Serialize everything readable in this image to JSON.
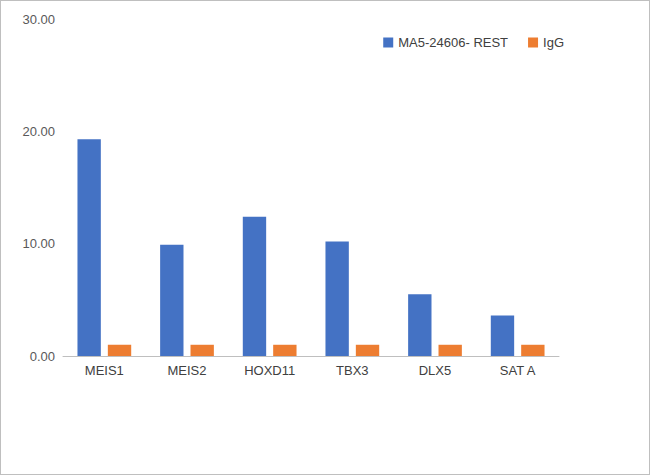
{
  "chart_data": {
    "type": "bar",
    "categories": [
      "MEIS1",
      "MEIS2",
      "HOXD11",
      "TBX3",
      "DLX5",
      "SAT A"
    ],
    "series": [
      {
        "name": "MA5-24606- REST",
        "color": "#4472c4",
        "values": [
          19.3,
          9.9,
          12.4,
          10.2,
          5.5,
          3.6
        ]
      },
      {
        "name": "IgG",
        "color": "#ed7d31",
        "values": [
          1.0,
          1.0,
          1.0,
          1.0,
          1.0,
          1.0
        ]
      }
    ],
    "ylim": [
      0,
      30
    ],
    "yticks": [
      {
        "value": 0,
        "label": "0.00"
      },
      {
        "value": 10,
        "label": "10.00"
      },
      {
        "value": 20,
        "label": "20.00"
      },
      {
        "value": 30,
        "label": "30.00"
      }
    ],
    "grid": false,
    "legend": "top-right"
  }
}
